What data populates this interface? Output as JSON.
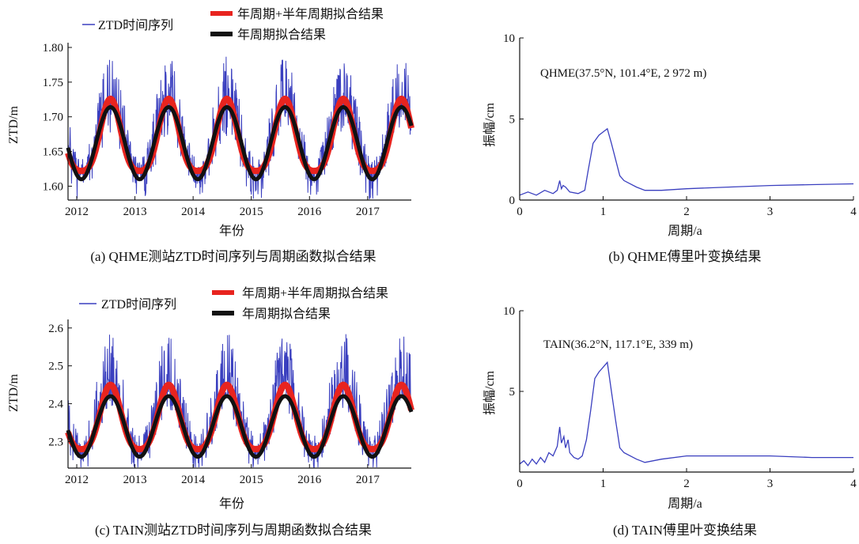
{
  "chart_data": [
    {
      "type": "line",
      "caption": "(a) QHME测站ZTD时间序列与周期函数拟合结果",
      "xlabel": "年份",
      "ylabel": "ZTD/m",
      "xlim": [
        2011.85,
        2017.75
      ],
      "ylim": [
        1.58,
        1.8
      ],
      "x_ticks": [
        "2012",
        "2013",
        "2014",
        "2015",
        "2016",
        "2017"
      ],
      "y_ticks": [
        "1.60",
        "1.65",
        "1.70",
        "1.75",
        "1.80"
      ],
      "legend": [
        "ZTD时间序列",
        "年周期+半年周期拟合结果",
        "年周期拟合结果"
      ],
      "legend_placement": "top",
      "series": [
        {
          "name": "ZTD时间序列",
          "color": "#3a3fbf",
          "model": {
            "mean": 1.662,
            "amp": 0.05,
            "peak_frac": 0.58,
            "noise_up": 0.075,
            "noise_down": 0.04
          }
        },
        {
          "name": "年周期+半年周期拟合结果",
          "color": "#e8241f",
          "model": {
            "mean": 1.664,
            "amp1": 0.052,
            "amp2": 0.01,
            "peak_frac": 0.58
          }
        },
        {
          "name": "年周期拟合结果",
          "color": "#111111",
          "model": {
            "mean": 1.662,
            "amp": 0.052,
            "peak_frac": 0.58
          }
        }
      ]
    },
    {
      "type": "line",
      "caption": "(b)  QHME傅里叶变换结果",
      "xlabel": "周期/a",
      "ylabel": "振幅/cm",
      "xlim": [
        0,
        4
      ],
      "ylim": [
        0,
        10
      ],
      "x_ticks": [
        "0",
        "1",
        "2",
        "3",
        "4"
      ],
      "y_ticks": [
        "0",
        "5",
        "10"
      ],
      "annotation": "QHME(37.5°N, 101.4°E, 2 972 m)",
      "series": [
        {
          "name": "",
          "color": "#3a3fbf",
          "x": [
            0.0,
            0.1,
            0.2,
            0.3,
            0.4,
            0.45,
            0.48,
            0.5,
            0.52,
            0.55,
            0.6,
            0.7,
            0.78,
            0.82,
            0.88,
            0.95,
            1.0,
            1.05,
            1.1,
            1.2,
            1.25,
            1.4,
            1.5,
            1.7,
            2.0,
            2.5,
            3.0,
            3.5,
            4.0
          ],
          "y": [
            0.3,
            0.5,
            0.3,
            0.6,
            0.4,
            0.6,
            1.2,
            0.7,
            0.9,
            0.8,
            0.5,
            0.4,
            0.6,
            1.8,
            3.5,
            4.0,
            4.2,
            4.4,
            3.5,
            1.5,
            1.2,
            0.8,
            0.6,
            0.6,
            0.7,
            0.8,
            0.9,
            0.95,
            1.0
          ]
        }
      ]
    },
    {
      "type": "line",
      "caption": "(c) TAIN测站ZTD时间序列与周期函数拟合结果",
      "xlabel": "年份",
      "ylabel": "ZTD/m",
      "xlim": [
        2011.85,
        2017.75
      ],
      "ylim": [
        2.23,
        2.61
      ],
      "x_ticks": [
        "2012",
        "2013",
        "2014",
        "2015",
        "2016",
        "2017"
      ],
      "y_ticks": [
        "2.3",
        "2.4",
        "2.5",
        "2.6"
      ],
      "legend": [
        "ZTD时间序列",
        "年周期+半年周期拟合结果",
        "年周期拟合结果"
      ],
      "legend_placement": "top",
      "series": [
        {
          "name": "ZTD时间序列",
          "color": "#3a3fbf",
          "model": {
            "mean": 2.345,
            "amp": 0.085,
            "peak_frac": 0.58,
            "noise_up": 0.16,
            "noise_down": 0.05
          }
        },
        {
          "name": "年周期+半年周期拟合结果",
          "color": "#e8241f",
          "model": {
            "mean": 2.35,
            "amp1": 0.085,
            "amp2": 0.015,
            "peak_frac": 0.58
          }
        },
        {
          "name": "年周期拟合结果",
          "color": "#111111",
          "model": {
            "mean": 2.34,
            "amp": 0.08,
            "peak_frac": 0.58
          }
        }
      ]
    },
    {
      "type": "line",
      "caption": "(d) TAIN傅里叶变换结果",
      "xlabel": "周期/a",
      "ylabel": "振幅/cm",
      "xlim": [
        0,
        4
      ],
      "ylim": [
        0,
        10
      ],
      "x_ticks": [
        "0",
        "1",
        "2",
        "3",
        "4"
      ],
      "y_ticks": [
        "5",
        "10"
      ],
      "annotation": "TAIN(36.2°N, 117.1°E, 339 m)",
      "series": [
        {
          "name": "",
          "color": "#3a3fbf",
          "x": [
            0.0,
            0.05,
            0.1,
            0.15,
            0.2,
            0.25,
            0.3,
            0.35,
            0.4,
            0.45,
            0.48,
            0.5,
            0.53,
            0.55,
            0.58,
            0.6,
            0.65,
            0.7,
            0.75,
            0.8,
            0.85,
            0.9,
            0.95,
            1.0,
            1.05,
            1.1,
            1.15,
            1.2,
            1.25,
            1.4,
            1.5,
            1.7,
            2.0,
            2.5,
            3.0,
            3.5,
            4.0
          ],
          "y": [
            0.5,
            0.7,
            0.4,
            0.8,
            0.5,
            0.9,
            0.6,
            1.2,
            1.0,
            1.6,
            2.8,
            1.8,
            2.2,
            1.5,
            2.0,
            1.2,
            0.9,
            0.8,
            1.0,
            2.0,
            3.8,
            5.8,
            6.2,
            6.5,
            6.8,
            5.0,
            3.2,
            1.5,
            1.2,
            0.8,
            0.6,
            0.8,
            1.0,
            1.0,
            1.0,
            0.9,
            0.9
          ]
        }
      ]
    }
  ]
}
